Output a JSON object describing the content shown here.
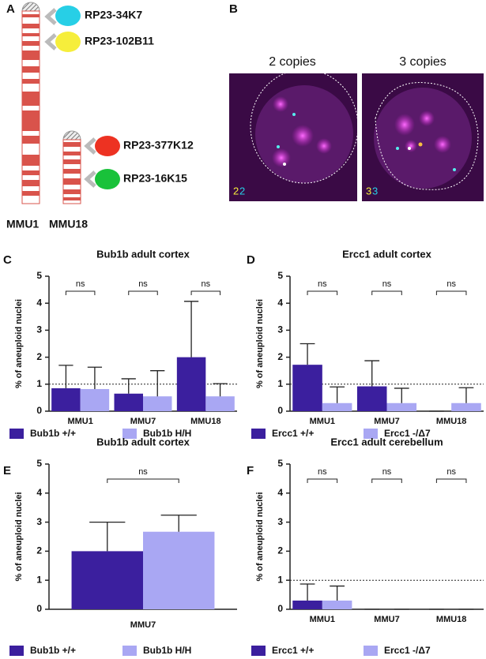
{
  "panel_labels": [
    "A",
    "B",
    "C",
    "D",
    "E",
    "F"
  ],
  "diagram": {
    "probes": [
      "RP23-34K7",
      "RP23-102B11",
      "RP23-377K12",
      "RP23-16K15"
    ],
    "chromosomes": [
      "MMU1",
      "MMU18"
    ]
  },
  "images": {
    "titles": [
      "2 copies",
      "3 copies"
    ],
    "counts": [
      [
        "2",
        "2"
      ],
      [
        "3",
        "3"
      ]
    ]
  },
  "chart_data": [
    {
      "type": "bar",
      "title": "Bub1b adult cortex",
      "y_label": "% of aneuploid nuclei",
      "categories": [
        "MMU1",
        "MMU7",
        "MMU18"
      ],
      "ylim": [
        0,
        5
      ],
      "yticks": [
        0,
        1,
        2,
        3,
        4,
        5
      ],
      "reference_line": 1,
      "annotations": [
        "ns",
        "ns",
        "ns"
      ],
      "series": [
        {
          "name": "Bub1b +/+",
          "color": "#3b1f9e",
          "values": [
            0.85,
            0.65,
            2.0
          ],
          "errors": [
            0.85,
            0.55,
            2.07
          ]
        },
        {
          "name": "Bub1b H/H",
          "color": "#a9a7f3",
          "values": [
            0.82,
            0.55,
            0.55
          ],
          "errors": [
            0.81,
            0.95,
            0.47
          ]
        }
      ]
    },
    {
      "type": "bar",
      "title": "Ercc1 adult cortex",
      "y_label": "% of aneuploid nuclei",
      "categories": [
        "MMU1",
        "MMU7",
        "MMU18"
      ],
      "ylim": [
        0,
        5
      ],
      "yticks": [
        0,
        1,
        2,
        3,
        4,
        5
      ],
      "reference_line": 1,
      "annotations": [
        "ns",
        "ns",
        "ns"
      ],
      "series": [
        {
          "name": "Ercc1 +/+",
          "color": "#3b1f9e",
          "values": [
            1.72,
            0.92,
            0
          ],
          "errors": [
            0.78,
            0.95,
            0
          ]
        },
        {
          "name": "Ercc1 -/Δ7",
          "color": "#a9a7f3",
          "values": [
            0.3,
            0.3,
            0.3
          ],
          "errors": [
            0.6,
            0.55,
            0.57
          ]
        }
      ]
    },
    {
      "type": "bar",
      "title": "Bub1b adult cortex",
      "y_label": "% of aneuploid nuclei",
      "categories": [
        "MMU7"
      ],
      "ylim": [
        0,
        5
      ],
      "yticks": [
        0,
        1,
        2,
        3,
        4,
        5
      ],
      "annotations": [
        "ns"
      ],
      "series": [
        {
          "name": "Bub1b +/+",
          "color": "#3b1f9e",
          "values": [
            2.0
          ],
          "errors": [
            1.0
          ]
        },
        {
          "name": "Bub1b H/H",
          "color": "#a9a7f3",
          "values": [
            2.67
          ],
          "errors": [
            0.57
          ]
        }
      ]
    },
    {
      "type": "bar",
      "title": "Ercc1 adult cerebellum",
      "y_label": "% of aneuploid nuclei",
      "categories": [
        "MMU1",
        "MMU7",
        "MMU18"
      ],
      "ylim": [
        0,
        5
      ],
      "yticks": [
        0,
        1,
        2,
        3,
        4,
        5
      ],
      "reference_line": 1,
      "annotations": [
        "ns",
        "ns",
        "ns"
      ],
      "series": [
        {
          "name": "Ercc1 +/+",
          "color": "#3b1f9e",
          "values": [
            0.3,
            0,
            0
          ],
          "errors": [
            0.57,
            0,
            0
          ]
        },
        {
          "name": "Ercc1 -/Δ7",
          "color": "#a9a7f3",
          "values": [
            0.3,
            0,
            0
          ],
          "errors": [
            0.5,
            0,
            0
          ]
        }
      ]
    }
  ]
}
